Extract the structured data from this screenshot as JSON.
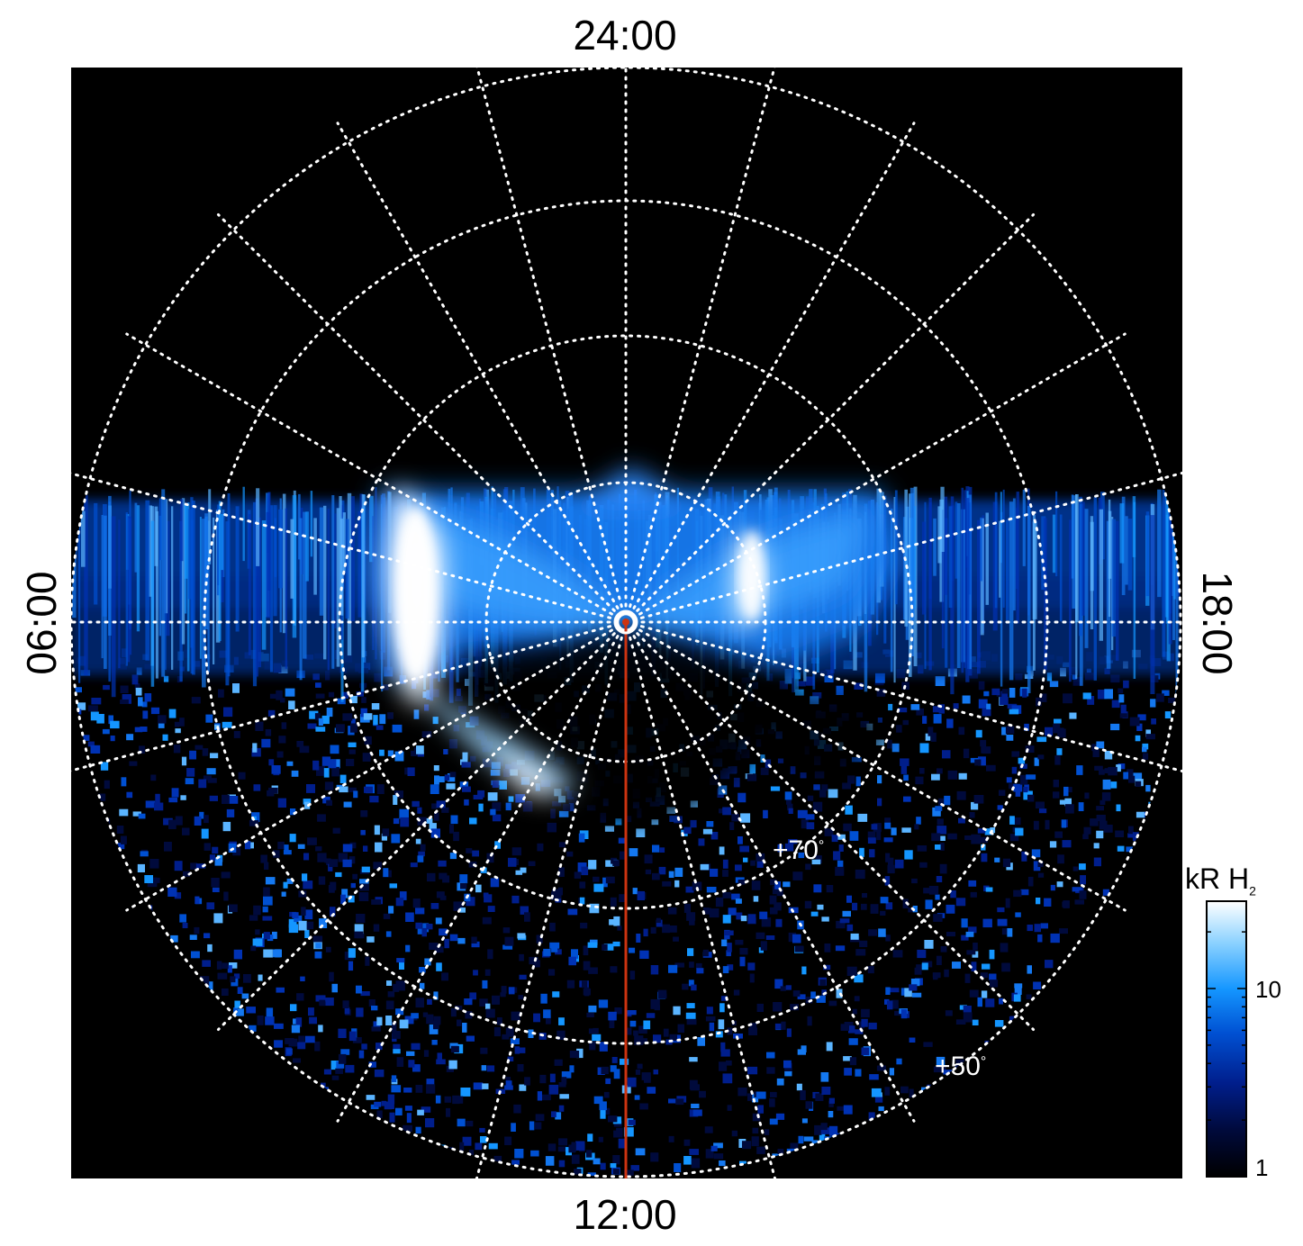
{
  "figure": {
    "projection": "polar",
    "background_color": "#000000",
    "grid_color": "#ffffff",
    "meridian_color": "#cc3311",
    "local_time_labels": {
      "top": "24:00",
      "bottom": "12:00",
      "left": "06:00",
      "right": "18:00"
    },
    "latitude_labels": {
      "inner": "+70",
      "outer": "+50",
      "unit": "°"
    },
    "colorbar": {
      "title_main": "kR H",
      "title_sub": "2",
      "scale": "log",
      "tick_10": "10",
      "tick_1": "1",
      "colors": [
        "#000000",
        "#000a3c",
        "#001e8c",
        "#0050d2",
        "#1496ff",
        "#8cd2ff",
        "#ffffff"
      ]
    }
  }
}
